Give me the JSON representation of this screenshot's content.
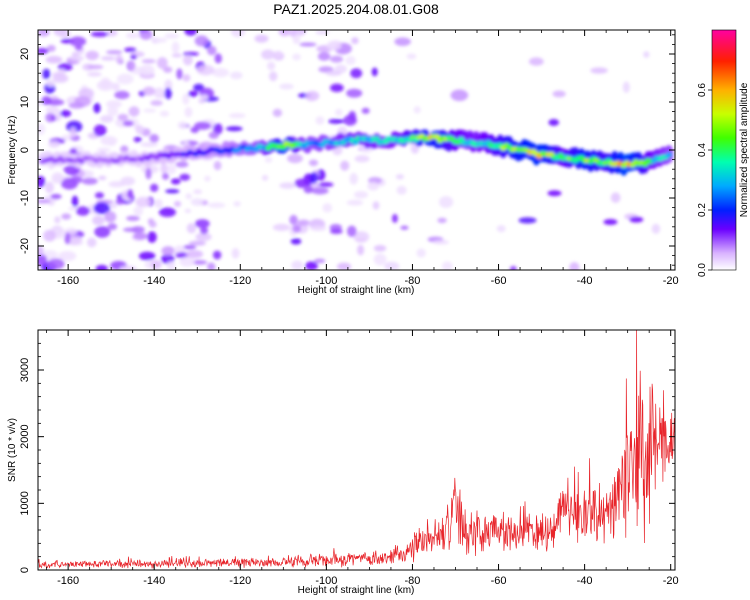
{
  "title": "PAZ1.2025.204.08.01.G08",
  "chart_data": [
    {
      "type": "heatmap",
      "xlabel": "Height of straight line (km)",
      "ylabel": "Frequency (Hz)",
      "xlim": [
        -167,
        -19
      ],
      "ylim": [
        -25,
        25
      ],
      "xticks": [
        -160,
        -140,
        -120,
        -100,
        -80,
        -60,
        -40,
        -20
      ],
      "xtick_labels": [
        "-160",
        "-140",
        "-120",
        "-100",
        "-80",
        "-60",
        "-40",
        "-20"
      ],
      "yticks": [
        -20,
        -10,
        0,
        10,
        20
      ],
      "ytick_labels": [
        "-20",
        "-10",
        "0",
        "10",
        "20"
      ],
      "colorbar": {
        "label": "Normalized spectral amplitude",
        "range": [
          0,
          0.8
        ],
        "ticks": [
          0.0,
          0.2,
          0.4,
          0.6
        ],
        "tick_labels": [
          "0.0",
          "0.2",
          "0.4",
          "0.6"
        ]
      },
      "ridge": {
        "x": [
          -166,
          -155,
          -145,
          -135,
          -125,
          -115,
          -110,
          -105,
          -100,
          -95,
          -90,
          -85,
          -80,
          -75,
          -70,
          -65,
          -60,
          -55,
          -50,
          -45,
          -40,
          -35,
          -30,
          -25,
          -20
        ],
        "freq": [
          -2,
          -2,
          -2,
          -1,
          0,
          0.5,
          1,
          1,
          1.5,
          2,
          2,
          2,
          2.5,
          2.5,
          2,
          1.5,
          1,
          0,
          -1,
          -1.5,
          -2,
          -2.5,
          -3,
          -2.5,
          -1
        ],
        "amplitude": [
          0.1,
          0.1,
          0.1,
          0.15,
          0.2,
          0.3,
          0.55,
          0.3,
          0.3,
          0.35,
          0.35,
          0.35,
          0.45,
          0.55,
          0.4,
          0.35,
          0.45,
          0.55,
          0.6,
          0.4,
          0.55,
          0.45,
          0.65,
          0.4,
          0.3
        ]
      }
    },
    {
      "type": "line",
      "xlabel": "Height of straight line (km)",
      "ylabel": "SNR (10 * v/v)",
      "xlim": [
        -167,
        -19
      ],
      "ylim": [
        0,
        3600
      ],
      "xticks": [
        -160,
        -140,
        -120,
        -100,
        -80,
        -60,
        -40,
        -20
      ],
      "xtick_labels": [
        "-160",
        "-140",
        "-120",
        "-100",
        "-80",
        "-60",
        "-40",
        "-20"
      ],
      "yticks": [
        0,
        1000,
        2000,
        3000
      ],
      "ytick_labels": [
        "0",
        "1000",
        "2000",
        "3000"
      ],
      "color": "#e8242a",
      "envelope": {
        "x": [
          -167,
          -150,
          -130,
          -110,
          -100,
          -90,
          -82,
          -78,
          -75,
          -72,
          -70,
          -68,
          -65,
          -60,
          -55,
          -50,
          -47,
          -45,
          -42,
          -40,
          -38,
          -35,
          -32,
          -30,
          -28,
          -26,
          -24,
          -22,
          -20
        ],
        "mean": [
          80,
          90,
          100,
          120,
          140,
          180,
          250,
          400,
          500,
          600,
          900,
          600,
          550,
          600,
          550,
          550,
          650,
          1000,
          800,
          900,
          850,
          800,
          1000,
          1400,
          1600,
          1400,
          2200,
          1800,
          1900
        ],
        "amp": [
          60,
          70,
          80,
          100,
          130,
          150,
          150,
          300,
          350,
          450,
          800,
          500,
          400,
          350,
          350,
          350,
          400,
          600,
          500,
          600,
          500,
          500,
          700,
          1300,
          1500,
          1300,
          1400,
          700,
          500
        ]
      }
    }
  ]
}
